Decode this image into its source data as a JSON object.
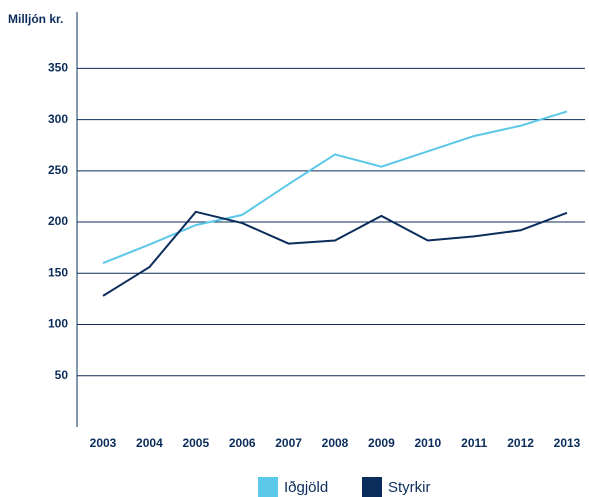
{
  "chart_data": {
    "type": "line",
    "y_axis_label": "Milljón kr.",
    "categories": [
      "2003",
      "2004",
      "2005",
      "2006",
      "2007",
      "2008",
      "2009",
      "2010",
      "2011",
      "2012",
      "2013"
    ],
    "series": [
      {
        "name": "Iðgjöld",
        "color": "#5bc8e8",
        "values": [
          160,
          178,
          197,
          207,
          237,
          266,
          254,
          269,
          284,
          294,
          308
        ]
      },
      {
        "name": "Styrkir",
        "color": "#0b2d5b",
        "values": [
          128,
          156,
          210,
          199,
          179,
          182,
          206,
          182,
          186,
          192,
          209
        ]
      }
    ],
    "ylim": [
      0,
      405
    ],
    "yticks": [
      50,
      100,
      150,
      200,
      250,
      300,
      350
    ],
    "grid": true,
    "legend": "bottom"
  }
}
